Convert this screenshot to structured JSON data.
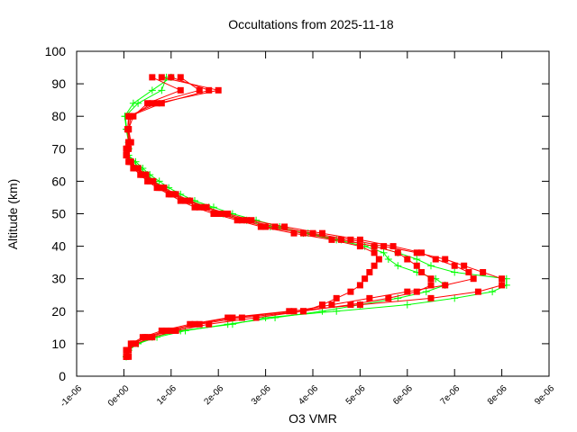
{
  "chart_data": {
    "type": "line",
    "title": "Occultations from 2025-11-18",
    "xlabel": "O3 VMR",
    "ylabel": "Altitude (km)",
    "xlim": [
      -1e-06,
      9e-06
    ],
    "ylim": [
      0,
      100
    ],
    "xticks": [
      -1e-06,
      0,
      1e-06,
      2e-06,
      3e-06,
      4e-06,
      5e-06,
      6e-06,
      7e-06,
      8e-06,
      9e-06
    ],
    "xtick_labels": [
      "-1e-06",
      "0e+00",
      "1e-06",
      "2e-06",
      "3e-06",
      "4e-06",
      "5e-06",
      "6e-06",
      "7e-06",
      "8e-06",
      "9e-06"
    ],
    "yticks": [
      0,
      10,
      20,
      30,
      40,
      50,
      60,
      70,
      80,
      90,
      100
    ],
    "ytick_labels": [
      "0",
      "10",
      "20",
      "30",
      "40",
      "50",
      "60",
      "70",
      "80",
      "90",
      "100"
    ],
    "grid": false,
    "legend": "none",
    "altitude": [
      6,
      8,
      10,
      12,
      14,
      16,
      18,
      20,
      22,
      24,
      26,
      28,
      30,
      32,
      34,
      36,
      38,
      40,
      42,
      44,
      46,
      48,
      50,
      52,
      54,
      56,
      58,
      60,
      62,
      64,
      66,
      68,
      70,
      72,
      76,
      80,
      84,
      88,
      92
    ],
    "series": [
      {
        "color": "#00ff00",
        "marker": "plus",
        "profiles": [
          [
            5e-08,
            1e-07,
            3e-07,
            6e-07,
            1.2e-06,
            2.3e-06,
            3e-06,
            4.5e-06,
            6e-06,
            7e-06,
            7.8e-06,
            8.1e-06,
            8.1e-06,
            7e-06,
            6.5e-06,
            6.2e-06,
            5.8e-06,
            5.3e-06,
            4.6e-06,
            3.9e-06,
            3.3e-06,
            2.8e-06,
            2.3e-06,
            1.9e-06,
            1.5e-06,
            1.2e-06,
            9.5e-07,
            7.5e-07,
            5.5e-07,
            4e-07,
            2.5e-07,
            1e-07,
            1e-07,
            1e-07,
            5e-08,
            2e-08,
            2e-07,
            6e-07,
            1e-06
          ],
          [
            5e-08,
            1e-07,
            3e-07,
            7e-07,
            1.3e-06,
            2.2e-06,
            3.2e-06,
            4.2e-06,
            5e-06,
            5.8e-06,
            6.4e-06,
            6.8e-06,
            6.6e-06,
            6.2e-06,
            5.8e-06,
            5.6e-06,
            5.5e-06,
            5.1e-06,
            4.5e-06,
            3.8e-06,
            3.1e-06,
            2.6e-06,
            2.1e-06,
            1.8e-06,
            1.4e-06,
            1.1e-06,
            8.5e-07,
            6.5e-07,
            5e-07,
            3.5e-07,
            2e-07,
            8e-08,
            1e-07,
            1.2e-07,
            6e-08,
            3e-08,
            3e-07,
            8e-07,
            9e-07
          ]
        ]
      },
      {
        "color": "#ff0000",
        "marker": "square",
        "profiles": [
          [
            5e-08,
            5e-08,
            1.5e-07,
            4e-07,
            8e-07,
            1.4e-06,
            2.2e-06,
            3.5e-06,
            5e-06,
            6.5e-06,
            7.5e-06,
            8e-06,
            8e-06,
            7.6e-06,
            7.2e-06,
            6.8e-06,
            6.2e-06,
            5.5e-06,
            4.8e-06,
            4e-06,
            3.2e-06,
            2.6e-06,
            2.1e-06,
            1.7e-06,
            1.35e-06,
            1.05e-06,
            8e-07,
            6e-07,
            4.5e-07,
            3e-07,
            1.5e-07,
            5e-08,
            5e-08,
            1e-07,
            8e-08,
            1e-07,
            7e-07,
            2e-06,
            8e-07
          ],
          [
            5e-08,
            8e-08,
            2e-07,
            5e-07,
            1e-06,
            1.6e-06,
            2.5e-06,
            3.8e-06,
            4.8e-06,
            5.6e-06,
            6.2e-06,
            6.5e-06,
            6.5e-06,
            6.3e-06,
            6.2e-06,
            6e-06,
            5.8e-06,
            5.3e-06,
            4.6e-06,
            3.8e-06,
            3e-06,
            2.5e-06,
            2e-06,
            1.6e-06,
            1.3e-06,
            1e-06,
            7.5e-07,
            5.5e-07,
            4e-07,
            2.5e-07,
            1.2e-07,
            5e-08,
            8e-08,
            1.2e-07,
            1e-07,
            1.5e-07,
            6e-07,
            1.6e-06,
            1.2e-06
          ],
          [
            1e-07,
            1e-07,
            2.5e-07,
            6e-07,
            1.1e-06,
            1.8e-06,
            2.8e-06,
            3.8e-06,
            4.2e-06,
            4.5e-06,
            4.8e-06,
            5e-06,
            5.1e-06,
            5.2e-06,
            5.3e-06,
            5.4e-06,
            5.3e-06,
            5e-06,
            4.4e-06,
            3.6e-06,
            2.9e-06,
            2.4e-06,
            1.9e-06,
            1.5e-06,
            1.2e-06,
            9.5e-07,
            7e-07,
            5e-07,
            3.5e-07,
            2e-07,
            1e-07,
            5e-08,
            1e-07,
            1.5e-07,
            1e-07,
            2e-07,
            5e-07,
            1.2e-06,
            6e-07
          ],
          [
            5e-08,
            5e-08,
            2e-07,
            4.5e-07,
            9e-07,
            1.5e-06,
            2.3e-06,
            3.6e-06,
            4.4e-06,
            5.2e-06,
            6e-06,
            6.8e-06,
            7.4e-06,
            7.3e-06,
            7e-06,
            6.6e-06,
            6.3e-06,
            5.7e-06,
            5e-06,
            4.2e-06,
            3.4e-06,
            2.7e-06,
            2.2e-06,
            1.75e-06,
            1.4e-06,
            1.1e-06,
            8.5e-07,
            6.2e-07,
            4.7e-07,
            3e-07,
            1.4e-07,
            6e-08,
            6e-08,
            1e-07,
            8e-08,
            1.2e-07,
            8e-07,
            1.8e-06,
            1e-06
          ]
        ]
      }
    ]
  }
}
